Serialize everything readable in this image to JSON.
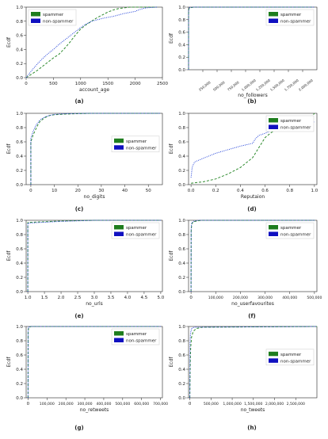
{
  "colors": {
    "spammer": "#2e8b2e",
    "non_spammer": "#1f3fd8",
    "legend_spammer": "#1e7d1e",
    "legend_non_spammer": "#1010c0"
  },
  "chart_data": [
    {
      "id": "a",
      "type": "line",
      "caption": "(a)",
      "xlabel": "account_age",
      "ylabel": "Ecdf",
      "xlim": [
        0,
        2500
      ],
      "ylim": [
        0,
        1.0
      ],
      "xticks": [
        0,
        500,
        1000,
        1500,
        2000,
        2500
      ],
      "xtick_labels": [
        "0",
        "500",
        "1000",
        "1500",
        "2000",
        "2500"
      ],
      "xtick_rotate": false,
      "yticks": [
        0.0,
        0.2,
        0.4,
        0.6,
        0.8,
        1.0
      ],
      "ytick_labels": [
        "0.0",
        "0.2",
        "0.4",
        "0.6",
        "0.8",
        "1.0"
      ],
      "legend_position": "top-left",
      "series": [
        {
          "name": "spammer",
          "style": "dashed",
          "x": [
            0,
            100,
            200,
            300,
            400,
            500,
            600,
            700,
            800,
            900,
            1000,
            1100,
            1200,
            1300,
            1400,
            1500,
            1600,
            1700,
            1800,
            1900,
            2000,
            2200,
            2400
          ],
          "y": [
            0,
            0.05,
            0.1,
            0.16,
            0.22,
            0.28,
            0.33,
            0.41,
            0.5,
            0.6,
            0.69,
            0.75,
            0.8,
            0.85,
            0.89,
            0.93,
            0.96,
            0.98,
            0.99,
            1.0,
            1.0,
            1.0,
            1.0
          ]
        },
        {
          "name": "non-spammer",
          "style": "dotted",
          "x": [
            0,
            100,
            200,
            300,
            400,
            500,
            600,
            700,
            800,
            900,
            1000,
            1100,
            1200,
            1400,
            1600,
            1800,
            2000,
            2100,
            2200,
            2400
          ],
          "y": [
            0,
            0.1,
            0.19,
            0.27,
            0.34,
            0.4,
            0.47,
            0.53,
            0.59,
            0.65,
            0.71,
            0.76,
            0.8,
            0.84,
            0.87,
            0.91,
            0.94,
            0.97,
            0.99,
            1.0
          ]
        }
      ]
    },
    {
      "id": "b",
      "type": "line",
      "caption": "(b)",
      "xlabel": "no_followers",
      "ylabel": "Ecdf",
      "xlim": [
        0,
        2250000
      ],
      "ylim": [
        0,
        1.0
      ],
      "xticks": [
        250000,
        500000,
        750000,
        1000000,
        1250000,
        1500000,
        1750000,
        2000000
      ],
      "xtick_labels": [
        "250,000",
        "500,000",
        "750,000",
        "1,000,000",
        "1,250,000",
        "1,500,000",
        "1,750,000",
        "2,000,000"
      ],
      "xtick_rotate": true,
      "yticks": [
        0.0,
        0.2,
        0.4,
        0.6,
        0.8,
        1.0
      ],
      "ytick_labels": [
        "0.0",
        "0.2",
        "0.4",
        "0.6",
        "0.8",
        "1.0"
      ],
      "legend_position": "top-right",
      "series": [
        {
          "name": "spammer",
          "style": "dashed",
          "x": [
            0,
            500,
            5000,
            20000,
            100000,
            2200000
          ],
          "y": [
            0,
            0.9,
            0.97,
            0.99,
            1.0,
            1.0
          ]
        },
        {
          "name": "non-spammer",
          "style": "dotted",
          "x": [
            0,
            300,
            3000,
            15000,
            80000,
            2200000
          ],
          "y": [
            0,
            0.88,
            0.96,
            0.99,
            1.0,
            1.0
          ]
        }
      ]
    },
    {
      "id": "c",
      "type": "line",
      "caption": "(c)",
      "xlabel": "no_digits",
      "ylabel": "Ecdf",
      "xlim": [
        -2,
        56
      ],
      "ylim": [
        0,
        1.0
      ],
      "xticks": [
        0,
        10,
        20,
        30,
        40,
        50
      ],
      "xtick_labels": [
        "0",
        "10",
        "20",
        "30",
        "40",
        "50"
      ],
      "xtick_rotate": false,
      "yticks": [
        0.0,
        0.2,
        0.4,
        0.6,
        0.8,
        1.0
      ],
      "ytick_labels": [
        "0.0",
        "0.2",
        "0.4",
        "0.6",
        "0.8",
        "1.0"
      ],
      "legend_position": "right",
      "series": [
        {
          "name": "spammer",
          "style": "dashed",
          "x": [
            0,
            0,
            1,
            2,
            3,
            4,
            6,
            8,
            10,
            15,
            25,
            55
          ],
          "y": [
            0,
            0.6,
            0.7,
            0.77,
            0.84,
            0.89,
            0.94,
            0.97,
            0.98,
            0.99,
            1.0,
            1.0
          ]
        },
        {
          "name": "non-spammer",
          "style": "dotted",
          "x": [
            0,
            0,
            1,
            2,
            3,
            4,
            6,
            8,
            10,
            15,
            25,
            55
          ],
          "y": [
            0,
            0.65,
            0.75,
            0.82,
            0.87,
            0.91,
            0.95,
            0.97,
            0.985,
            0.995,
            1.0,
            1.0
          ]
        }
      ]
    },
    {
      "id": "d",
      "type": "line",
      "caption": "(d)",
      "xlabel": "Reputaion",
      "ylabel": "Ecdf",
      "xlim": [
        -0.02,
        1.02
      ],
      "ylim": [
        0,
        1.0
      ],
      "xticks": [
        0.0,
        0.2,
        0.4,
        0.6,
        0.8,
        1.0
      ],
      "xtick_labels": [
        "0.0",
        "0.2",
        "0.4",
        "0.6",
        "0.8",
        "1.0"
      ],
      "xtick_rotate": false,
      "yticks": [
        0.0,
        0.2,
        0.4,
        0.6,
        0.8,
        1.0
      ],
      "ytick_labels": [
        "0.0",
        "0.2",
        "0.4",
        "0.6",
        "0.8",
        "1.0"
      ],
      "legend_position": "top-right",
      "series": [
        {
          "name": "spammer",
          "style": "dashed",
          "x": [
            0,
            0.1,
            0.2,
            0.3,
            0.4,
            0.5,
            0.55,
            0.6,
            0.65,
            0.7,
            0.8,
            0.9,
            0.95,
            1.0
          ],
          "y": [
            0.02,
            0.04,
            0.08,
            0.15,
            0.24,
            0.38,
            0.52,
            0.66,
            0.73,
            0.78,
            0.83,
            0.88,
            0.9,
            1.0
          ]
        },
        {
          "name": "non-spammer",
          "style": "dotted",
          "x": [
            0,
            0.01,
            0.03,
            0.1,
            0.2,
            0.3,
            0.4,
            0.5,
            0.52,
            0.55,
            0.6,
            0.7,
            0.8,
            0.9,
            1.0
          ],
          "y": [
            0.1,
            0.25,
            0.32,
            0.37,
            0.44,
            0.49,
            0.54,
            0.58,
            0.64,
            0.69,
            0.72,
            0.79,
            0.84,
            0.87,
            0.88
          ]
        }
      ]
    },
    {
      "id": "e",
      "type": "line",
      "caption": "(e)",
      "xlabel": "no_urls",
      "ylabel": "Ecdf",
      "xlim": [
        0.95,
        5.05
      ],
      "ylim": [
        0,
        1.0
      ],
      "xticks": [
        1.0,
        1.5,
        2.0,
        2.5,
        3.0,
        3.5,
        4.0,
        4.5,
        5.0
      ],
      "xtick_labels": [
        "1.0",
        "1.5",
        "2.0",
        "2.5",
        "3.0",
        "3.5",
        "4.0",
        "4.5",
        "5.0"
      ],
      "xtick_rotate": false,
      "yticks": [
        0.0,
        0.2,
        0.4,
        0.6,
        0.8,
        1.0
      ],
      "ytick_labels": [
        "0.0",
        "0.2",
        "0.4",
        "0.6",
        "0.8",
        "1.0"
      ],
      "legend_position": "top-right",
      "series": [
        {
          "name": "spammer",
          "style": "dashed",
          "x": [
            1,
            1,
            2,
            3,
            5
          ],
          "y": [
            0,
            0.97,
            0.99,
            1.0,
            1.0
          ]
        },
        {
          "name": "non-spammer",
          "style": "dotted",
          "x": [
            1,
            1,
            2,
            3,
            5
          ],
          "y": [
            0,
            0.96,
            0.985,
            1.0,
            1.0
          ]
        }
      ]
    },
    {
      "id": "f",
      "type": "line",
      "caption": "(f)",
      "xlabel": "no_userfavourites",
      "ylabel": "Ecdf",
      "xlim": [
        -10000,
        510000
      ],
      "ylim": [
        0,
        1.0
      ],
      "xticks": [
        0,
        100000,
        200000,
        300000,
        400000,
        500000
      ],
      "xtick_labels": [
        "0",
        "100,000",
        "200,000",
        "300,000",
        "400,000",
        "500,000"
      ],
      "xtick_rotate": false,
      "yticks": [
        0.0,
        0.2,
        0.4,
        0.6,
        0.8,
        1.0
      ],
      "ytick_labels": [
        "0.0",
        "0.2",
        "0.4",
        "0.6",
        "0.8",
        "1.0"
      ],
      "legend_position": "top-right",
      "series": [
        {
          "name": "spammer",
          "style": "dashed",
          "x": [
            0,
            500,
            3000,
            10000,
            40000,
            500000
          ],
          "y": [
            0,
            0.85,
            0.95,
            0.98,
            1.0,
            1.0
          ]
        },
        {
          "name": "non-spammer",
          "style": "dotted",
          "x": [
            0,
            400,
            2500,
            8000,
            30000,
            500000
          ],
          "y": [
            0,
            0.87,
            0.96,
            0.985,
            1.0,
            1.0
          ]
        }
      ]
    },
    {
      "id": "g",
      "type": "line",
      "caption": "(g)",
      "xlabel": "no_retweets",
      "ylabel": "Ecdf",
      "xlim": [
        -10000,
        710000
      ],
      "ylim": [
        0,
        1.0
      ],
      "xticks": [
        0,
        100000,
        200000,
        300000,
        400000,
        500000,
        600000,
        700000
      ],
      "xtick_labels": [
        "0",
        "100,000",
        "200,000",
        "300,000",
        "400,000",
        "500,000",
        "600,000",
        "700,000"
      ],
      "xtick_rotate": false,
      "yticks": [
        0.0,
        0.2,
        0.4,
        0.6,
        0.8,
        1.0
      ],
      "ytick_labels": [
        "0.0",
        "0.2",
        "0.4",
        "0.6",
        "0.8",
        "1.0"
      ],
      "legend_position": "top-right",
      "series": [
        {
          "name": "spammer",
          "style": "dashed",
          "x": [
            0,
            300,
            3000,
            15000,
            700000
          ],
          "y": [
            0,
            0.92,
            0.98,
            1.0,
            1.0
          ]
        },
        {
          "name": "non-spammer",
          "style": "dotted",
          "x": [
            0,
            200,
            2000,
            10000,
            700000
          ],
          "y": [
            0,
            0.95,
            0.99,
            1.0,
            1.0
          ]
        }
      ]
    },
    {
      "id": "h",
      "type": "line",
      "caption": "(h)",
      "xlabel": "no_tweets",
      "ylabel": "Ecdf",
      "xlim": [
        -30000,
        3000000
      ],
      "ylim": [
        0,
        1.0
      ],
      "xticks": [
        0,
        500000,
        1000000,
        1500000,
        2000000,
        2500000
      ],
      "xtick_labels": [
        "0",
        "500,000",
        "1,000,000",
        "1,500,000",
        "2,000,000",
        "2,500,000"
      ],
      "xtick_rotate": false,
      "yticks": [
        0.0,
        0.2,
        0.4,
        0.6,
        0.8,
        1.0
      ],
      "ytick_labels": [
        "0.0",
        "0.2",
        "0.4",
        "0.6",
        "0.8",
        "1.0"
      ],
      "legend_position": "right",
      "series": [
        {
          "name": "spammer",
          "style": "dashed",
          "x": [
            0,
            10000,
            20000,
            40000,
            80000,
            150000,
            300000,
            3000000
          ],
          "y": [
            0,
            0.5,
            0.7,
            0.85,
            0.93,
            0.97,
            0.99,
            1.0
          ]
        },
        {
          "name": "non-spammer",
          "style": "dotted",
          "x": [
            0,
            5000,
            15000,
            40000,
            100000,
            3000000
          ],
          "y": [
            0,
            0.75,
            0.9,
            0.97,
            0.99,
            1.0
          ]
        }
      ]
    }
  ]
}
